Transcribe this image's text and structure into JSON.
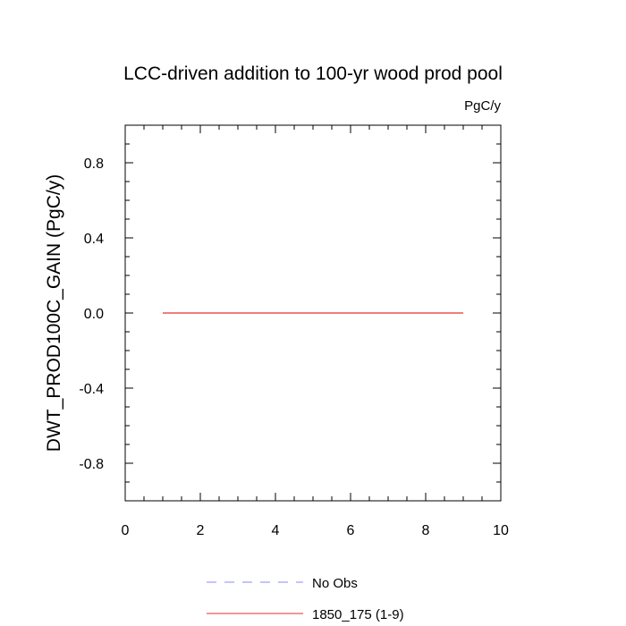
{
  "chart_data": {
    "type": "line",
    "title": "LCC-driven addition to 100-yr wood prod pool",
    "units": "PgC/y",
    "ylabel": "DWT_PROD100C_GAIN  (PgC/y)",
    "xlabel": "",
    "xlim": [
      0,
      10
    ],
    "ylim": [
      -1,
      1
    ],
    "x_ticks": [
      0,
      2,
      4,
      6,
      8,
      10
    ],
    "x_tick_labels": [
      "0",
      "2",
      "4",
      "6",
      "8",
      "10"
    ],
    "y_ticks": [
      -0.8,
      -0.4,
      0.0,
      0.4,
      0.8
    ],
    "y_tick_labels": [
      "-0.8",
      "-0.4",
      "0.0",
      "0.4",
      "0.8"
    ],
    "grid": false,
    "legend_position": "bottom",
    "series": [
      {
        "name": "No Obs",
        "color": "#8a8aff",
        "dash": "dashed",
        "x": [],
        "values": []
      },
      {
        "name": "1850_175 (1-9)",
        "color": "#e53030",
        "dash": "solid",
        "x": [
          1,
          2,
          3,
          4,
          5,
          6,
          7,
          8,
          9
        ],
        "values": [
          0,
          0,
          0,
          0,
          0,
          0,
          0,
          0,
          0
        ]
      }
    ]
  }
}
